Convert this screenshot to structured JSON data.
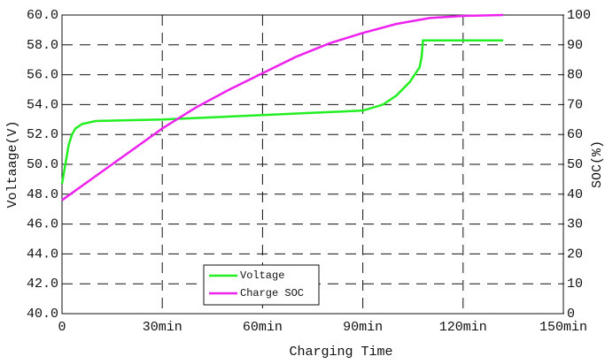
{
  "chart_data": {
    "type": "line",
    "xlabel": "Charging Time",
    "ylabel": "Voltaage(V)",
    "y2label": "SOC(%)",
    "series": [
      {
        "name": "Voltage",
        "color": "#22ee22",
        "axis": "y",
        "x": [
          0,
          1,
          2,
          3,
          4,
          6,
          10,
          30,
          60,
          90,
          96,
          100,
          104,
          107,
          107.6,
          108,
          132
        ],
        "values": [
          48.7,
          50.0,
          51.3,
          52.0,
          52.4,
          52.7,
          52.9,
          53.0,
          53.3,
          53.6,
          54.0,
          54.6,
          55.5,
          56.5,
          57.2,
          58.3,
          58.3
        ]
      },
      {
        "name": "Charge SOC",
        "color": "#ee22ee",
        "axis": "y2",
        "x": [
          0,
          10,
          20,
          30,
          40,
          50,
          60,
          70,
          80,
          90,
          100,
          110,
          120,
          132
        ],
        "values": [
          38,
          46,
          54,
          62,
          69,
          75,
          80.5,
          86,
          90.5,
          94,
          97,
          99,
          99.7,
          100
        ]
      }
    ],
    "xlim": [
      0,
      150
    ],
    "xticks": [
      {
        "value": 0,
        "label": "0"
      },
      {
        "value": 30,
        "label": "30min"
      },
      {
        "value": 60,
        "label": "60min"
      },
      {
        "value": 90,
        "label": "90min"
      },
      {
        "value": 120,
        "label": "120min"
      },
      {
        "value": 150,
        "label": "150min"
      }
    ],
    "ylim": [
      40,
      60
    ],
    "yticks": [
      {
        "value": 40,
        "label": "40.0"
      },
      {
        "value": 42,
        "label": "42.0"
      },
      {
        "value": 44,
        "label": "44.0"
      },
      {
        "value": 46,
        "label": "46.0"
      },
      {
        "value": 48,
        "label": "48.0"
      },
      {
        "value": 50,
        "label": "50.0"
      },
      {
        "value": 52,
        "label": "52.0"
      },
      {
        "value": 54,
        "label": "54.0"
      },
      {
        "value": 56,
        "label": "56.0"
      },
      {
        "value": 58,
        "label": "58.0"
      },
      {
        "value": 60,
        "label": "60.0"
      }
    ],
    "y2lim": [
      0,
      100
    ],
    "y2ticks": [
      0,
      10,
      20,
      30,
      40,
      50,
      60,
      70,
      80,
      90,
      100
    ],
    "grid": true
  }
}
